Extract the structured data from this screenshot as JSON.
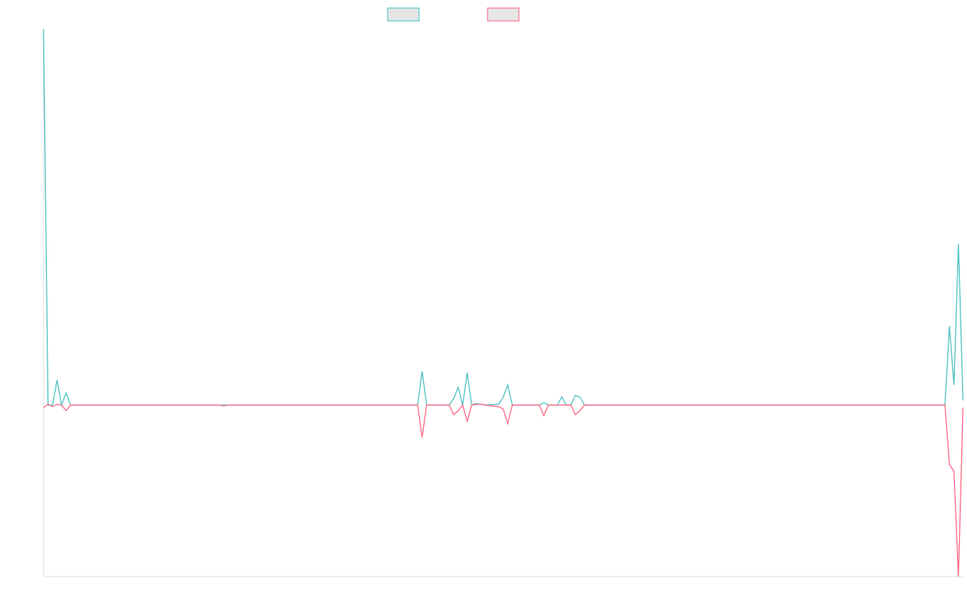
{
  "chart_data": {
    "type": "line",
    "x": [
      0,
      1,
      2,
      3,
      4,
      5,
      6,
      39,
      40,
      41,
      83,
      84,
      85,
      90,
      91,
      92,
      93,
      94,
      95,
      96,
      97,
      98,
      101,
      102,
      103,
      104,
      110,
      111,
      112,
      114,
      115,
      116,
      117,
      118,
      119,
      120,
      200,
      201,
      202,
      203,
      204
    ],
    "xlim": [
      0,
      204
    ],
    "ylim": [
      -2.13,
      4.67
    ],
    "series": [
      {
        "color": "#4bc0c0",
        "legend_fill": "#e6e6e6",
        "values": [
          4.67,
          0,
          0,
          0.31,
          0,
          0.15,
          0,
          0,
          0,
          0,
          0,
          0.42,
          0,
          0,
          0.08,
          0.22,
          0,
          0.4,
          0,
          0.02,
          0.01,
          0,
          0.01,
          0.1,
          0.25,
          0,
          0,
          0.03,
          0,
          0,
          0.1,
          0,
          0,
          0.12,
          0.1,
          0,
          0,
          0.98,
          0.25,
          2.0,
          0.06
        ]
      },
      {
        "color": "#ff6384",
        "legend_fill": "#e6e6e6",
        "values": [
          -0.03,
          0.01,
          -0.02,
          0.01,
          0,
          -0.07,
          0,
          0,
          -0.01,
          0,
          0,
          -0.4,
          0,
          0,
          -0.12,
          -0.07,
          0,
          -0.2,
          0,
          0.01,
          0.01,
          0,
          -0.02,
          -0.05,
          -0.23,
          0,
          0,
          -0.13,
          0,
          0,
          0,
          0,
          0,
          -0.12,
          -0.07,
          0,
          0,
          -0.74,
          -0.82,
          -2.13,
          -0.03
        ]
      }
    ]
  }
}
